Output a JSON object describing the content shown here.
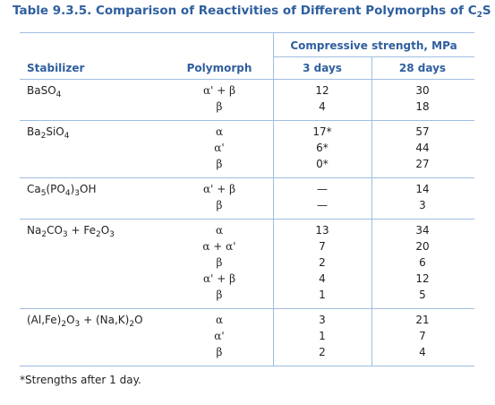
{
  "title": [
    {
      "t": "Table 9.3.5. Comparison of Reactivities of Different Polymorphs of C"
    },
    {
      "sub": "2"
    },
    {
      "t": "S"
    }
  ],
  "table": {
    "group_header": "Compressive strength, MPa",
    "columns": [
      "Stabilizer",
      "Polymorph",
      "3 days",
      "28 days"
    ],
    "groups": [
      {
        "stabilizer": [
          {
            "t": "BaSO"
          },
          {
            "sub": "4"
          }
        ],
        "rows": [
          [
            "α' + β",
            12,
            30
          ],
          [
            "β",
            4,
            18
          ]
        ]
      },
      {
        "stabilizer": [
          {
            "t": "Ba"
          },
          {
            "sub": "2"
          },
          {
            "t": "SiO"
          },
          {
            "sub": "4"
          }
        ],
        "rows": [
          [
            "α",
            "17*",
            57
          ],
          [
            "α'",
            "6*",
            44
          ],
          [
            "β",
            "0*",
            27
          ]
        ]
      },
      {
        "stabilizer": [
          {
            "t": "Ca"
          },
          {
            "sub": "5"
          },
          {
            "t": "(PO"
          },
          {
            "sub": "4"
          },
          {
            "t": ")"
          },
          {
            "sub": "3"
          },
          {
            "t": "OH"
          }
        ],
        "rows": [
          [
            "α' + β",
            "—",
            14
          ],
          [
            "β",
            "—",
            3
          ]
        ]
      },
      {
        "stabilizer": [
          {
            "t": "Na"
          },
          {
            "sub": "2"
          },
          {
            "t": "CO"
          },
          {
            "sub": "3"
          },
          {
            "t": " + Fe"
          },
          {
            "sub": "2"
          },
          {
            "t": "O"
          },
          {
            "sub": "3"
          }
        ],
        "rows": [
          [
            "α",
            13,
            34
          ],
          [
            "α + α'",
            7,
            20
          ],
          [
            "β",
            2,
            6
          ],
          [
            "α' + β",
            4,
            12
          ],
          [
            "β",
            1,
            5
          ]
        ]
      },
      {
        "stabilizer": [
          {
            "t": "(Al,Fe)"
          },
          {
            "sub": "2"
          },
          {
            "t": "O"
          },
          {
            "sub": "3"
          },
          {
            "t": " + (Na,K)"
          },
          {
            "sub": "2"
          },
          {
            "t": "O"
          }
        ],
        "rows": [
          [
            "α",
            3,
            21
          ],
          [
            "α'",
            1,
            7
          ],
          [
            "β",
            2,
            4
          ]
        ]
      }
    ]
  },
  "footnote": "*Strengths after 1 day."
}
